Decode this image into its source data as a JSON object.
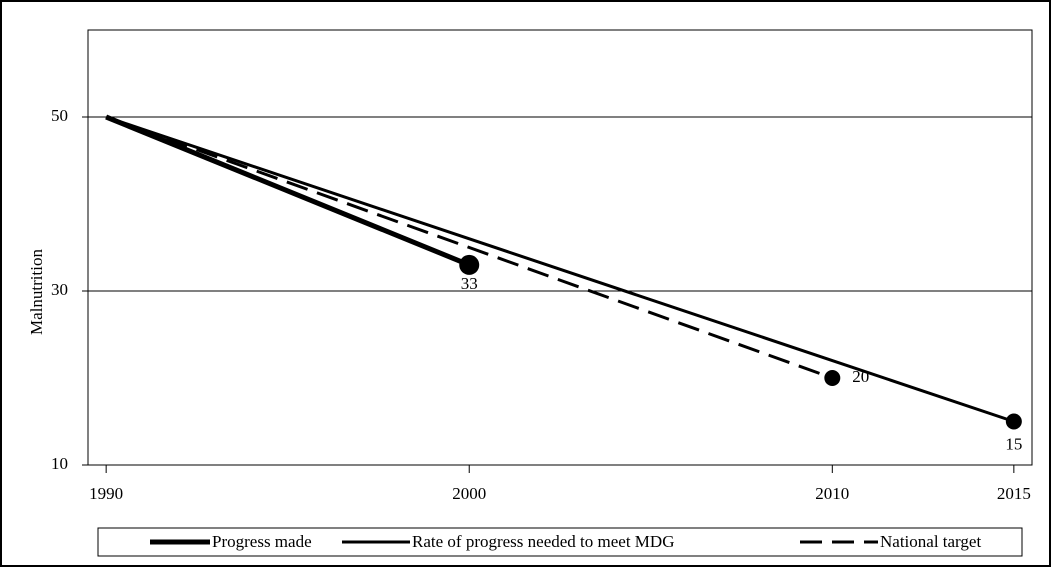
{
  "chart_data": {
    "type": "line",
    "y_label": "Malnutrition",
    "xlim": [
      1989.5,
      2015.5
    ],
    "xticks": [
      1990,
      2000,
      2010,
      2015
    ],
    "ylim": [
      10,
      60
    ],
    "yticks": [
      10,
      30,
      50
    ],
    "grid": true,
    "legend": "bottom",
    "series": [
      {
        "name": "Progress made",
        "color": "#000000",
        "style": "solid",
        "width": 5,
        "x": [
          1990,
          2000
        ],
        "values": [
          50,
          33
        ]
      },
      {
        "name": "Rate of progress needed to meet MDG",
        "color": "#000000",
        "style": "solid",
        "width": 3,
        "x": [
          1990,
          2015
        ],
        "values": [
          50,
          15
        ]
      },
      {
        "name": "National target",
        "color": "#000000",
        "style": "dashed",
        "width": 3,
        "x": [
          1990,
          2010
        ],
        "values": [
          50,
          20
        ]
      }
    ]
  }
}
